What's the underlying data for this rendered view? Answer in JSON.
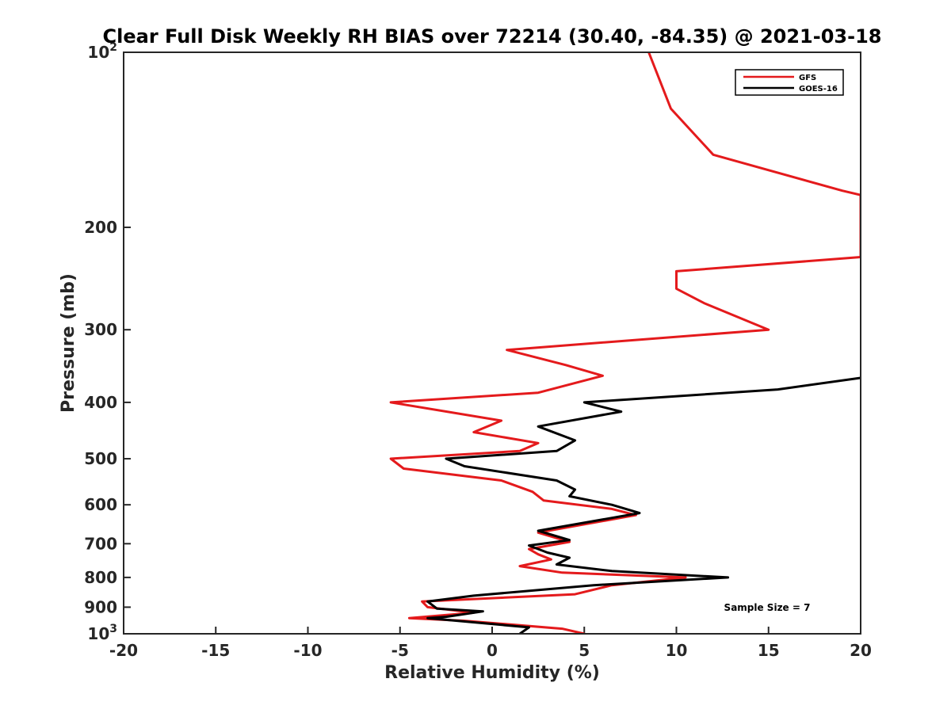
{
  "chart_data": {
    "type": "line",
    "title": "Clear Full Disk Weekly RH BIAS over 72214 (30.40, -84.35) @ 2021-03-18",
    "xlabel": "Relative Humidity (%)",
    "ylabel": "Pressure (mb)",
    "xlim": [
      -20,
      20
    ],
    "ylim": [
      100,
      1000
    ],
    "y_scale": "log",
    "y_reversed": true,
    "x_ticks": [
      -20,
      -15,
      -10,
      -5,
      0,
      5,
      10,
      15,
      20
    ],
    "x_tick_labels": [
      "-20",
      "-15",
      "-10",
      "-5",
      "0",
      "5",
      "10",
      "15",
      "20"
    ],
    "y_ticks": [
      100,
      200,
      300,
      400,
      500,
      600,
      700,
      800,
      900,
      1000
    ],
    "y_tick_labels": [
      {
        "base": "10",
        "exp": "2"
      },
      {
        "base": "200",
        "exp": ""
      },
      {
        "base": "300",
        "exp": ""
      },
      {
        "base": "400",
        "exp": ""
      },
      {
        "base": "500",
        "exp": ""
      },
      {
        "base": "600",
        "exp": ""
      },
      {
        "base": "700",
        "exp": ""
      },
      {
        "base": "800",
        "exp": ""
      },
      {
        "base": "900",
        "exp": ""
      },
      {
        "base": "10",
        "exp": "3"
      }
    ],
    "grid": false,
    "legend_position": "top-right",
    "series": [
      {
        "name": "GFS",
        "color": "#e41a1c",
        "points": [
          [
            8.5,
            100
          ],
          [
            9.7,
            125
          ],
          [
            12.0,
            150
          ],
          [
            19.0,
            173
          ],
          [
            20.0,
            176
          ],
          [
            20.0,
            225
          ],
          [
            10.0,
            238
          ],
          [
            10.0,
            255
          ],
          [
            11.5,
            270
          ],
          [
            15.0,
            300
          ],
          [
            0.8,
            325
          ],
          [
            4.0,
            345
          ],
          [
            6.0,
            360
          ],
          [
            2.5,
            385
          ],
          [
            -5.5,
            400
          ],
          [
            0.5,
            430
          ],
          [
            -1.0,
            450
          ],
          [
            2.5,
            470
          ],
          [
            1.5,
            485
          ],
          [
            -5.5,
            500
          ],
          [
            -4.8,
            520
          ],
          [
            0.5,
            545
          ],
          [
            2.2,
            570
          ],
          [
            2.8,
            590
          ],
          [
            6.5,
            610
          ],
          [
            7.8,
            625
          ],
          [
            2.5,
            670
          ],
          [
            4.2,
            695
          ],
          [
            2.0,
            715
          ],
          [
            2.5,
            730
          ],
          [
            3.2,
            745
          ],
          [
            1.5,
            765
          ],
          [
            3.8,
            785
          ],
          [
            10.5,
            800
          ],
          [
            6.5,
            825
          ],
          [
            4.5,
            855
          ],
          [
            -3.8,
            880
          ],
          [
            -3.5,
            900
          ],
          [
            -1.0,
            920
          ],
          [
            -4.5,
            940
          ],
          [
            -1.5,
            950
          ],
          [
            3.8,
            980
          ],
          [
            5.0,
            1000
          ]
        ]
      },
      {
        "name": "GOES-16",
        "color": "#000000",
        "points": [
          [
            20.0,
            363
          ],
          [
            15.5,
            380
          ],
          [
            5.0,
            400
          ],
          [
            7.0,
            415
          ],
          [
            2.5,
            440
          ],
          [
            4.5,
            465
          ],
          [
            3.5,
            485
          ],
          [
            -2.5,
            500
          ],
          [
            -1.5,
            515
          ],
          [
            3.5,
            545
          ],
          [
            4.5,
            565
          ],
          [
            4.2,
            580
          ],
          [
            6.5,
            600
          ],
          [
            8.0,
            620
          ],
          [
            2.5,
            665
          ],
          [
            4.2,
            690
          ],
          [
            2.0,
            705
          ],
          [
            3.0,
            725
          ],
          [
            4.2,
            740
          ],
          [
            3.5,
            760
          ],
          [
            6.5,
            780
          ],
          [
            12.8,
            800
          ],
          [
            5.5,
            825
          ],
          [
            -1.0,
            860
          ],
          [
            -3.5,
            880
          ],
          [
            -3.0,
            905
          ],
          [
            -0.5,
            915
          ],
          [
            -2.5,
            935
          ],
          [
            -3.5,
            940
          ],
          [
            2.0,
            975
          ],
          [
            1.5,
            1000
          ]
        ]
      }
    ],
    "annotation": "Sample Size = 7"
  }
}
